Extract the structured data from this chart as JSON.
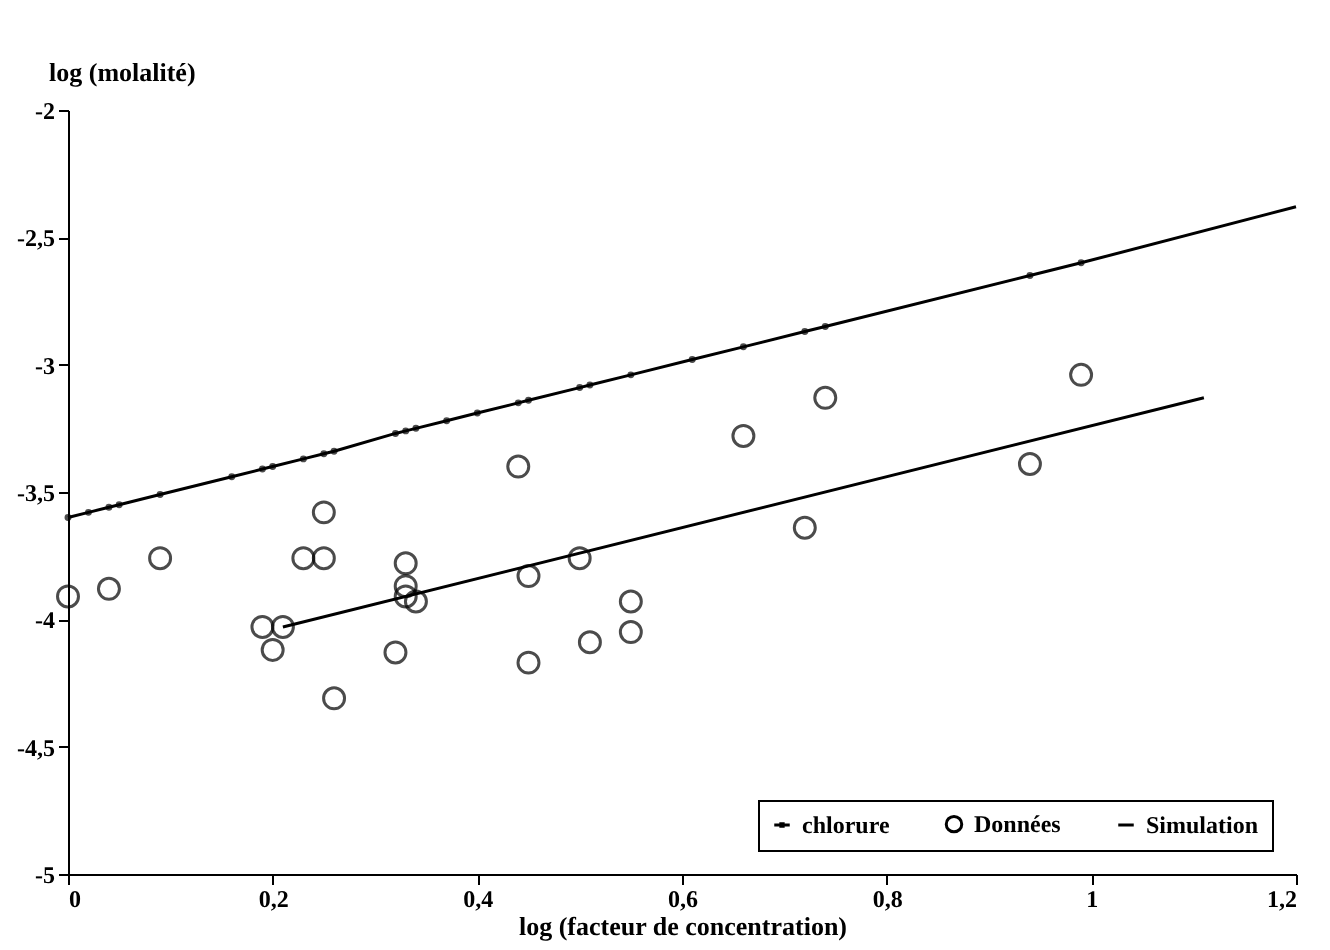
{
  "chart_data": {
    "type": "scatter",
    "xlabel": "log (facteur de concentration)",
    "ylabel": "log (molalité)",
    "xlim": [
      0,
      1.2
    ],
    "ylim": [
      -5,
      -2
    ],
    "xticks": [
      0,
      {
        "value": 0.2,
        "label": "0,2"
      },
      {
        "value": 0.4,
        "label": "0,4"
      },
      {
        "value": 0.6,
        "label": "0,6"
      },
      {
        "value": 0.8,
        "label": "0,8"
      },
      1,
      {
        "value": 1.2,
        "label": "1,2"
      }
    ],
    "yticks": [
      -5,
      {
        "value": -4.5,
        "label": "-4,5"
      },
      -4,
      {
        "value": -3.5,
        "label": "-3,5"
      },
      -3,
      {
        "value": -2.5,
        "label": "-2,5"
      },
      -2
    ],
    "grid": false,
    "legend": "bottom right",
    "series": [
      {
        "name": "chlorure",
        "type": "line",
        "marker": "circle",
        "line_style": "solid",
        "color": "#000000",
        "x": [
          0,
          0.02,
          0.04,
          0.05,
          0.09,
          0.16,
          0.19,
          0.2,
          0.23,
          0.25,
          0.26,
          0.32,
          0.33,
          0.34,
          0.37,
          0.4,
          0.44,
          0.45,
          0.5,
          0.51,
          0.55,
          0.61,
          0.66,
          0.72,
          0.74,
          0.94,
          0.99
        ],
        "values": [
          -3.6,
          -3.58,
          -3.56,
          -3.55,
          -3.51,
          -3.44,
          -3.41,
          -3.4,
          -3.37,
          -3.35,
          -3.34,
          -3.27,
          -3.26,
          -3.25,
          -3.22,
          -3.19,
          -3.15,
          -3.14,
          -3.09,
          -3.08,
          -3.04,
          -2.98,
          -2.93,
          -2.87,
          -2.85,
          -2.65,
          -2.6
        ]
      },
      {
        "type": "line",
        "marker": "none",
        "line_style": "solid",
        "color": "#000000",
        "x": [
          0.99,
          1.2
        ],
        "values": [
          -2.6,
          -2.38
        ]
      },
      {
        "name": "Données",
        "type": "scatter",
        "marker": "circle",
        "color": "#000000",
        "x": [
          0,
          0.04,
          0.09,
          0.19,
          0.2,
          0.21,
          0.23,
          0.25,
          0.25,
          0.26,
          0.32,
          0.33,
          0.33,
          0.33,
          0.34,
          0.44,
          0.45,
          0.45,
          0.5,
          0.51,
          0.55,
          0.55,
          0.66,
          0.72,
          0.74,
          0.94,
          0.99
        ],
        "values": [
          -3.91,
          -3.88,
          -3.76,
          -4.03,
          -4.12,
          -4.03,
          -3.76,
          -3.76,
          -3.58,
          -4.31,
          -4.13,
          -3.78,
          -3.87,
          -3.91,
          -3.93,
          -3.4,
          -3.83,
          -4.17,
          -3.76,
          -4.09,
          -3.93,
          -4.05,
          -3.28,
          -3.64,
          -3.13,
          -3.39,
          -3.04
        ]
      },
      {
        "name": "Simulation",
        "type": "line",
        "marker": "none",
        "line_style": "solid",
        "color": "#000000",
        "x": [
          0.21,
          1.11
        ],
        "values": [
          -4.03,
          -3.13
        ]
      }
    ]
  }
}
